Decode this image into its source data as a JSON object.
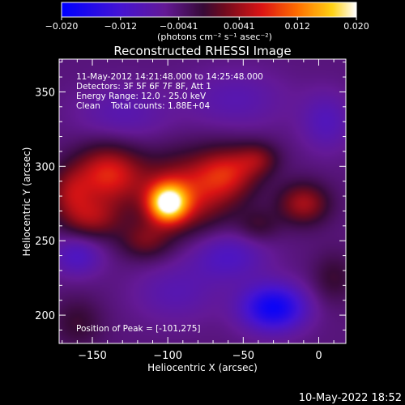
{
  "chart_data": {
    "type": "heatmap",
    "title": "Reconstructed RHESSI Image",
    "xlabel": "Heliocentric X (arcsec)",
    "ylabel": "Heliocentric Y (arcsec)",
    "xlim": [
      -172,
      18
    ],
    "ylim": [
      181,
      372
    ],
    "x_ticks": [
      -150,
      -100,
      -50,
      0
    ],
    "y_ticks": [
      200,
      250,
      300,
      350
    ],
    "annotations": [
      "11-May-2012 14:21:48.000 to 14:25:48.000",
      "Detectors: 3F 5F 6F 7F 8F, Att 1",
      "Energy Range: 12.0 - 25.0 keV",
      "Clean    Total counts: 1.88E+04"
    ],
    "peak_label": "Position of Peak = [-101,275]",
    "peak_position": [
      -101,
      275
    ],
    "colorbar": {
      "min": -0.02,
      "max": 0.02,
      "ticks": [
        "-0.020",
        "-0.012",
        "-0.0041",
        "0.0041",
        "0.012",
        "0.020"
      ],
      "tick_values": [
        -0.02,
        -0.012,
        -0.0041,
        0.0041,
        0.012,
        0.02
      ],
      "unit_label": "(photons cm⁻² s⁻¹ asec⁻²)"
    },
    "timestamp": "10-May-2022 18:52",
    "colors": {
      "low": "#0000ff",
      "mid_low": "#5a0aa0",
      "zero": "#3a0a3a",
      "mid_high": "#cc1010",
      "high": "#ffa000",
      "max": "#ffffff"
    },
    "sources": [
      {
        "x": -100,
        "y": 275,
        "amp": 0.02,
        "sx": 9,
        "sy": 9
      },
      {
        "x": -88,
        "y": 282,
        "amp": 0.011,
        "sx": 22,
        "sy": 18
      },
      {
        "x": -140,
        "y": 295,
        "amp": 0.012,
        "sx": 16,
        "sy": 14
      },
      {
        "x": -60,
        "y": 296,
        "amp": 0.009,
        "sx": 14,
        "sy": 12
      },
      {
        "x": -40,
        "y": 305,
        "amp": 0.006,
        "sx": 10,
        "sy": 8
      },
      {
        "x": -10,
        "y": 275,
        "amp": 0.009,
        "sx": 12,
        "sy": 10
      },
      {
        "x": -150,
        "y": 265,
        "amp": 0.008,
        "sx": 14,
        "sy": 10
      },
      {
        "x": -115,
        "y": 250,
        "amp": 0.006,
        "sx": 12,
        "sy": 9
      },
      {
        "x": -165,
        "y": 282,
        "amp": 0.007,
        "sx": 10,
        "sy": 12
      },
      {
        "x": -30,
        "y": 205,
        "amp": -0.014,
        "sx": 15,
        "sy": 11
      },
      {
        "x": -60,
        "y": 240,
        "amp": -0.006,
        "sx": 18,
        "sy": 12
      },
      {
        "x": -160,
        "y": 240,
        "amp": -0.006,
        "sx": 12,
        "sy": 10
      },
      {
        "x": -95,
        "y": 215,
        "amp": -0.004,
        "sx": 20,
        "sy": 14
      },
      {
        "x": -130,
        "y": 335,
        "amp": -0.004,
        "sx": 22,
        "sy": 14
      },
      {
        "x": -55,
        "y": 345,
        "amp": -0.004,
        "sx": 24,
        "sy": 14
      },
      {
        "x": 10,
        "y": 225,
        "amp": 0.004,
        "sx": 10,
        "sy": 12
      },
      {
        "x": -160,
        "y": 195,
        "amp": 0.004,
        "sx": 12,
        "sy": 12
      },
      {
        "x": -40,
        "y": 260,
        "amp": 0.004,
        "sx": 10,
        "sy": 8
      },
      {
        "x": 5,
        "y": 330,
        "amp": -0.005,
        "sx": 12,
        "sy": 14
      }
    ],
    "background": -0.0045
  }
}
